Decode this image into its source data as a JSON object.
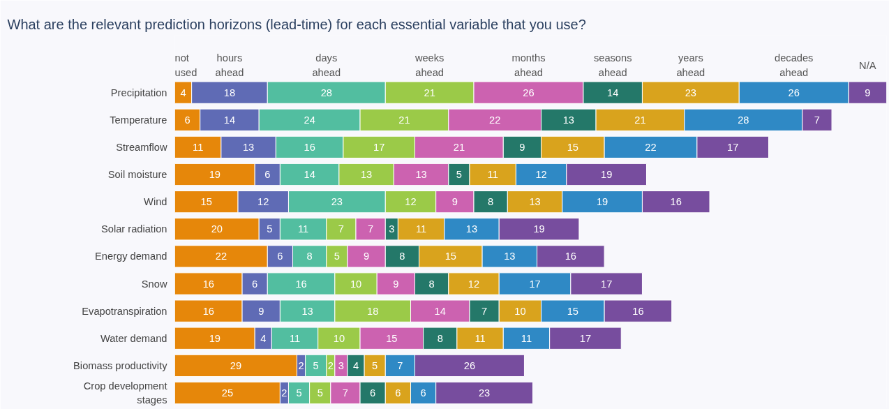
{
  "chart_data": {
    "type": "bar",
    "orientation": "horizontal",
    "stacked": true,
    "data_labels": true,
    "title": "What are the relevant prediction horizons (lead-time) for each essential variable that you use?",
    "categories": [
      "Precipitation",
      "Temperature",
      "Streamflow",
      "Soil moisture",
      "Wind",
      "Solar radiation",
      "Energy demand",
      "Snow",
      "Evapotranspiration",
      "Water demand",
      "Biomass productivity",
      "Crop development stages"
    ],
    "xlim": [
      0,
      169
    ],
    "series": [
      {
        "name": "not used",
        "color": "#e6870a",
        "values": [
          4,
          6,
          11,
          19,
          15,
          20,
          22,
          16,
          16,
          19,
          29,
          25
        ]
      },
      {
        "name": "hours ahead",
        "color": "#5f6bb5",
        "values": [
          18,
          14,
          13,
          6,
          12,
          5,
          6,
          6,
          9,
          4,
          2,
          2
        ]
      },
      {
        "name": "days ahead",
        "color": "#52bea0",
        "values": [
          28,
          24,
          16,
          14,
          23,
          11,
          8,
          16,
          13,
          11,
          5,
          5
        ]
      },
      {
        "name": "weeks ahead",
        "color": "#9bca48",
        "values": [
          21,
          21,
          17,
          13,
          12,
          7,
          5,
          10,
          18,
          10,
          2,
          5
        ]
      },
      {
        "name": "months ahead",
        "color": "#cc62b0",
        "values": [
          26,
          22,
          21,
          13,
          9,
          7,
          9,
          9,
          14,
          15,
          3,
          7
        ]
      },
      {
        "name": "seasons ahead",
        "color": "#247869",
        "values": [
          14,
          13,
          9,
          5,
          8,
          3,
          8,
          8,
          7,
          8,
          4,
          6
        ]
      },
      {
        "name": "years ahead",
        "color": "#d9a31d",
        "values": [
          23,
          21,
          15,
          11,
          13,
          11,
          15,
          12,
          10,
          11,
          5,
          6
        ]
      },
      {
        "name": "decades ahead",
        "color": "#2f89c5",
        "values": [
          26,
          28,
          22,
          12,
          19,
          13,
          13,
          17,
          15,
          11,
          7,
          6
        ]
      },
      {
        "name": "N/A",
        "color": "#774d9e",
        "values": [
          9,
          7,
          17,
          19,
          16,
          19,
          16,
          17,
          16,
          17,
          26,
          23
        ]
      }
    ]
  }
}
